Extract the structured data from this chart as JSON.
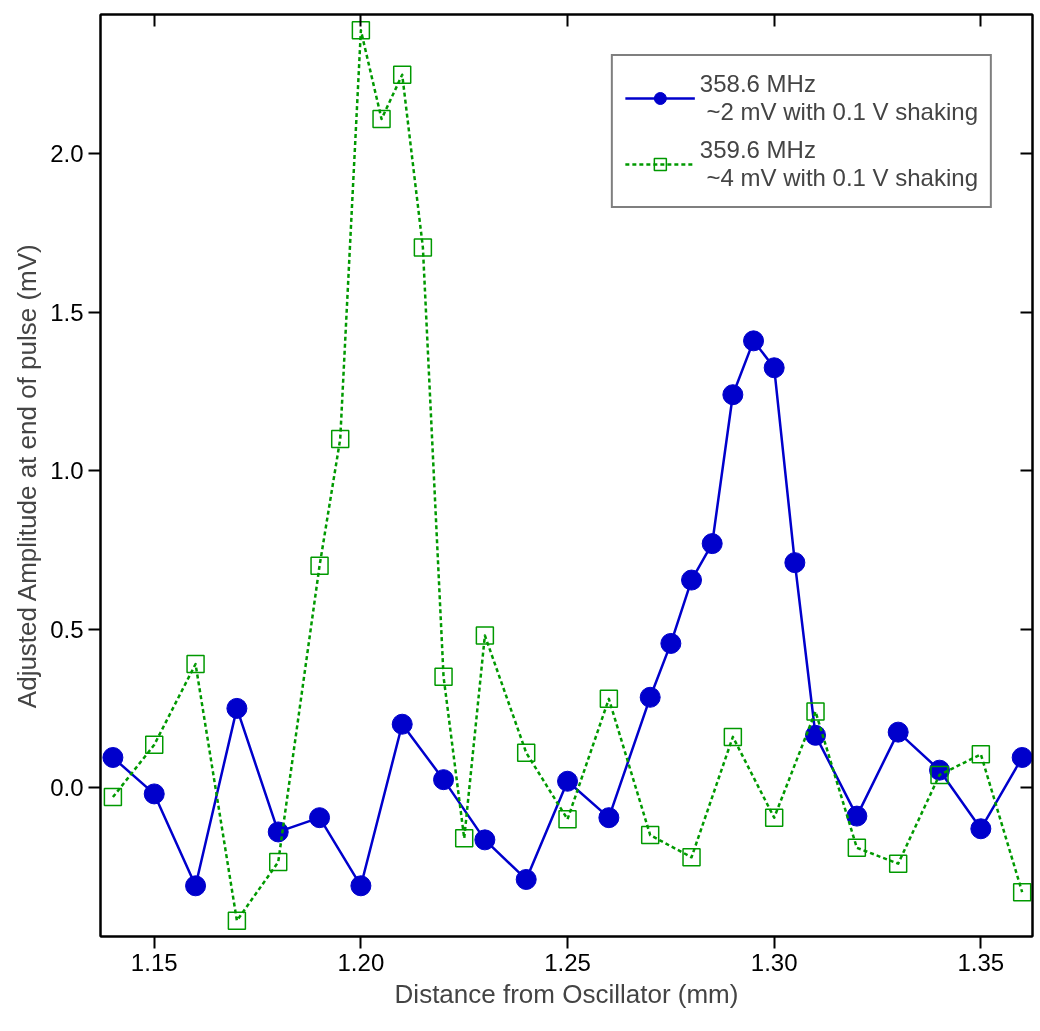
{
  "chart_data": {
    "type": "line",
    "xlabel": "Distance from Oscillator (mm)",
    "ylabel": "Adjusted Amplitude at end of pulse (mV)",
    "xlim": [
      1.137,
      1.3625
    ],
    "ylim": [
      -0.47,
      2.44
    ],
    "xticks": [
      {
        "value": 1.15,
        "label": "1.15"
      },
      {
        "value": 1.2,
        "label": "1.20"
      },
      {
        "value": 1.25,
        "label": "1.25"
      },
      {
        "value": 1.3,
        "label": "1.30"
      },
      {
        "value": 1.35,
        "label": "1.35"
      }
    ],
    "yticks": [
      {
        "value": 0,
        "label": "0.0"
      },
      0.5,
      {
        "value": 1,
        "label": "1.0"
      },
      1.5,
      {
        "value": 2,
        "label": "2.0"
      }
    ],
    "grid": false,
    "legend": "top right",
    "series": [
      {
        "name": "358.6 MHz\n ~2 mV with 0.1 V shaking",
        "color": "#0000cc",
        "marker": "circle",
        "line_style": "solid",
        "x": [
          1.14,
          1.15,
          1.16,
          1.17,
          1.18,
          1.19,
          1.2,
          1.21,
          1.22,
          1.23,
          1.24,
          1.25,
          1.26,
          1.27,
          1.275,
          1.28,
          1.285,
          1.29,
          1.295,
          1.3,
          1.305,
          1.31,
          1.32,
          1.33,
          1.34,
          1.35,
          1.36
        ],
        "values": [
          0.095,
          -0.02,
          -0.31,
          0.25,
          -0.14,
          -0.095,
          -0.31,
          0.2,
          0.025,
          -0.165,
          -0.29,
          0.02,
          -0.095,
          0.285,
          0.455,
          0.655,
          0.77,
          1.24,
          1.41,
          1.325,
          0.71,
          0.165,
          -0.09,
          0.175,
          0.055,
          -0.13,
          0.095
        ]
      },
      {
        "name": "359.6 MHz\n ~4 mV with 0.1 V shaking",
        "color": "#009900",
        "marker": "square",
        "line_style": "dotted",
        "x": [
          1.14,
          1.15,
          1.16,
          1.17,
          1.18,
          1.19,
          1.195,
          1.2,
          1.205,
          1.21,
          1.215,
          1.22,
          1.225,
          1.23,
          1.24,
          1.25,
          1.26,
          1.27,
          1.28,
          1.29,
          1.3,
          1.31,
          1.32,
          1.33,
          1.34,
          1.35,
          1.36
        ],
        "values": [
          -0.03,
          0.135,
          0.39,
          -0.42,
          -0.235,
          0.7,
          1.1,
          2.39,
          2.11,
          2.25,
          1.705,
          0.35,
          -0.16,
          0.48,
          0.11,
          -0.1,
          0.28,
          -0.15,
          -0.22,
          0.16,
          -0.095,
          0.24,
          -0.19,
          -0.24,
          0.04,
          0.105,
          -0.33
        ]
      }
    ]
  }
}
